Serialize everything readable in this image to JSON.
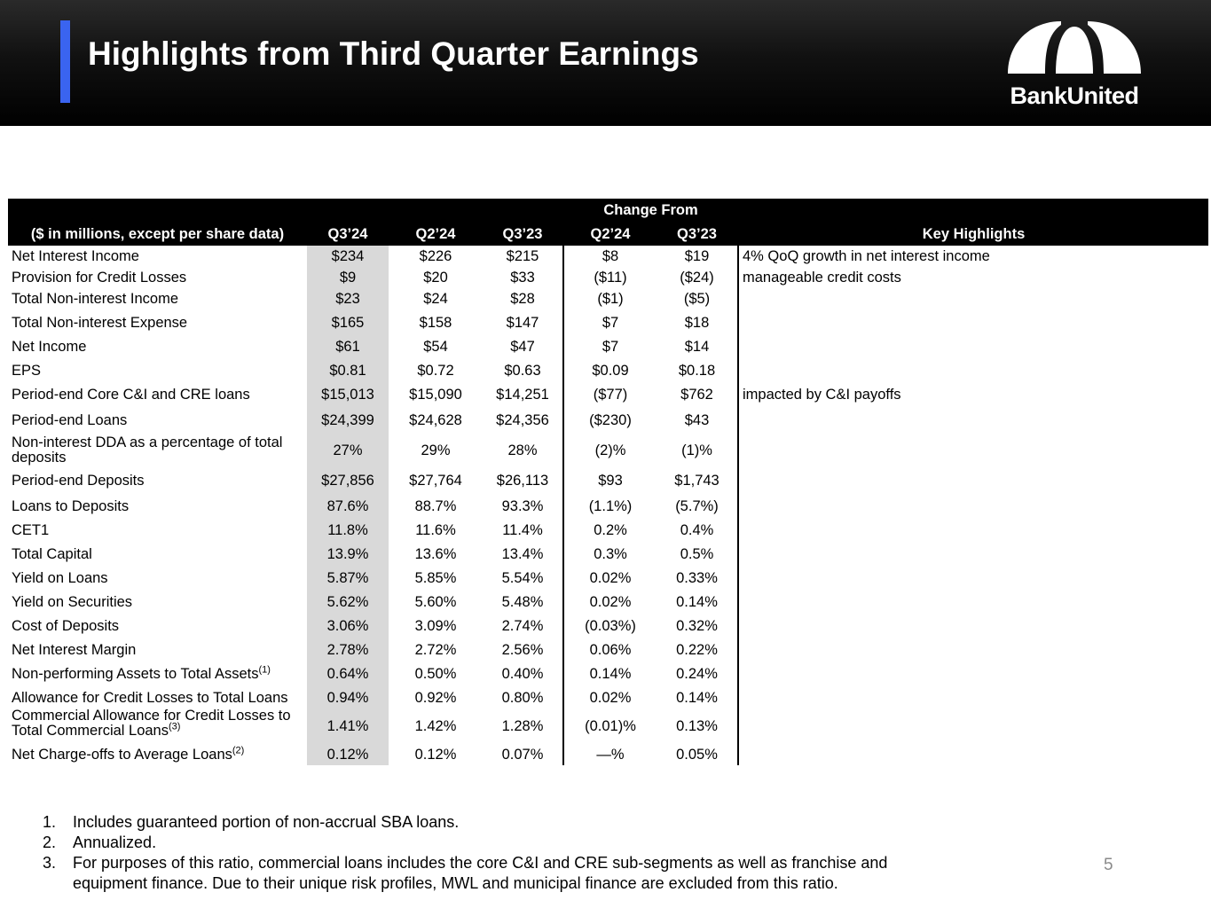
{
  "header": {
    "title": "Highlights from Third Quarter Earnings",
    "logo_text": "BankUnited",
    "accent_color": "#3a64f0"
  },
  "table": {
    "group_header": "Change From",
    "columns": {
      "label": "($ in millions, except per share data)",
      "q324": "Q3’24",
      "q224": "Q2’24",
      "q323": "Q3’23",
      "chg_q224": "Q2’24",
      "chg_q323": "Q3’23",
      "highlights": "Key Highlights"
    },
    "rows": [
      {
        "label": "Net Interest Income",
        "q324": "$234",
        "q224": "$226",
        "q323": "$215",
        "chg_q224": "$8",
        "chg_q323": "$19",
        "highlight": "4% QoQ growth in net interest income"
      },
      {
        "label": "Provision for Credit Losses",
        "q324": "$9",
        "q224": "$20",
        "q323": "$33",
        "chg_q224": "($11)",
        "chg_q323": "($24)",
        "highlight": "manageable credit costs"
      },
      {
        "label": "Total Non-interest Income",
        "q324": "$23",
        "q224": "$24",
        "q323": "$28",
        "chg_q224": "($1)",
        "chg_q323": "($5)",
        "highlight": ""
      },
      {
        "label": "Total Non-interest Expense",
        "q324": "$165",
        "q224": "$158",
        "q323": "$147",
        "chg_q224": "$7",
        "chg_q323": "$18",
        "highlight": ""
      },
      {
        "label": "Net Income",
        "q324": "$61",
        "q224": "$54",
        "q323": "$47",
        "chg_q224": "$7",
        "chg_q323": "$14",
        "highlight": ""
      },
      {
        "label": "EPS",
        "q324": "$0.81",
        "q224": "$0.72",
        "q323": "$0.63",
        "chg_q224": "$0.09",
        "chg_q323": "$0.18",
        "highlight": ""
      },
      {
        "label": "Period-end Core C&I and CRE loans",
        "q324": "$15,013",
        "q224": "$15,090",
        "q323": "$14,251",
        "chg_q224": "($77)",
        "chg_q323": "$762",
        "highlight": "impacted by C&I payoffs"
      },
      {
        "label": "Period-end Loans",
        "q324": "$24,399",
        "q224": "$24,628",
        "q323": "$24,356",
        "chg_q224": "($230)",
        "chg_q323": "$43",
        "highlight": ""
      },
      {
        "label": "Non-interest DDA as a percentage of total",
        "label2": "deposits",
        "q324": "27%",
        "q224": "29%",
        "q323": "28%",
        "chg_q224": "(2)%",
        "chg_q323": "(1)%",
        "highlight": ""
      },
      {
        "label": "Period-end Deposits",
        "q324": "$27,856",
        "q224": "$27,764",
        "q323": "$26,113",
        "chg_q224": "$93",
        "chg_q323": "$1,743",
        "highlight": ""
      },
      {
        "label": "Loans to Deposits",
        "q324": "87.6%",
        "q224": "88.7%",
        "q323": "93.3%",
        "chg_q224": "(1.1%)",
        "chg_q323": "(5.7%)",
        "highlight": ""
      },
      {
        "label": "CET1",
        "q324": "11.8%",
        "q224": "11.6%",
        "q323": "11.4%",
        "chg_q224": "0.2%",
        "chg_q323": "0.4%",
        "highlight": ""
      },
      {
        "label": "Total Capital",
        "q324": "13.9%",
        "q224": "13.6%",
        "q323": "13.4%",
        "chg_q224": "0.3%",
        "chg_q323": "0.5%",
        "highlight": ""
      },
      {
        "label": "Yield on Loans",
        "q324": "5.87%",
        "q224": "5.85%",
        "q323": "5.54%",
        "chg_q224": "0.02%",
        "chg_q323": "0.33%",
        "highlight": ""
      },
      {
        "label": "Yield on Securities",
        "q324": "5.62%",
        "q224": "5.60%",
        "q323": "5.48%",
        "chg_q224": "0.02%",
        "chg_q323": "0.14%",
        "highlight": ""
      },
      {
        "label": "Cost of Deposits",
        "q324": "3.06%",
        "q224": "3.09%",
        "q323": "2.74%",
        "chg_q224": "(0.03%)",
        "chg_q323": "0.32%",
        "highlight": ""
      },
      {
        "label": "Net Interest Margin",
        "q324": "2.78%",
        "q224": "2.72%",
        "q323": "2.56%",
        "chg_q224": "0.06%",
        "chg_q323": "0.22%",
        "highlight": ""
      },
      {
        "label": "Non-performing Assets to Total Assets",
        "sup": "(1)",
        "q324": "0.64%",
        "q224": "0.50%",
        "q323": "0.40%",
        "chg_q224": "0.14%",
        "chg_q323": "0.24%",
        "highlight": ""
      },
      {
        "label": "Allowance for Credit Losses to Total Loans",
        "q324": "0.94%",
        "q224": "0.92%",
        "q323": "0.80%",
        "chg_q224": "0.02%",
        "chg_q323": "0.14%",
        "highlight": ""
      },
      {
        "label": "Commercial Allowance for Credit Losses to",
        "label2": "Total Commercial Loans",
        "sup": "(3)",
        "q324": "1.41%",
        "q224": "1.42%",
        "q323": "1.28%",
        "chg_q224": "(0.01)%",
        "chg_q323": "0.13%",
        "highlight": ""
      },
      {
        "label": "Net Charge-offs to Average Loans",
        "sup": "(2)",
        "q324": "0.12%",
        "q224": "0.12%",
        "q323": "0.07%",
        "chg_q224": "—%",
        "chg_q323": "0.05%",
        "highlight": ""
      }
    ]
  },
  "footnotes": [
    {
      "num": "1.",
      "text": "Includes guaranteed portion of non-accrual SBA loans."
    },
    {
      "num": "2.",
      "text": "Annualized."
    },
    {
      "num": "3.",
      "text": "For purposes of this ratio, commercial loans includes the core C&I and CRE sub-segments as well as franchise and equipment finance. Due to their unique risk profiles, MWL and municipal finance are excluded from this ratio."
    }
  ],
  "page_number": "5"
}
